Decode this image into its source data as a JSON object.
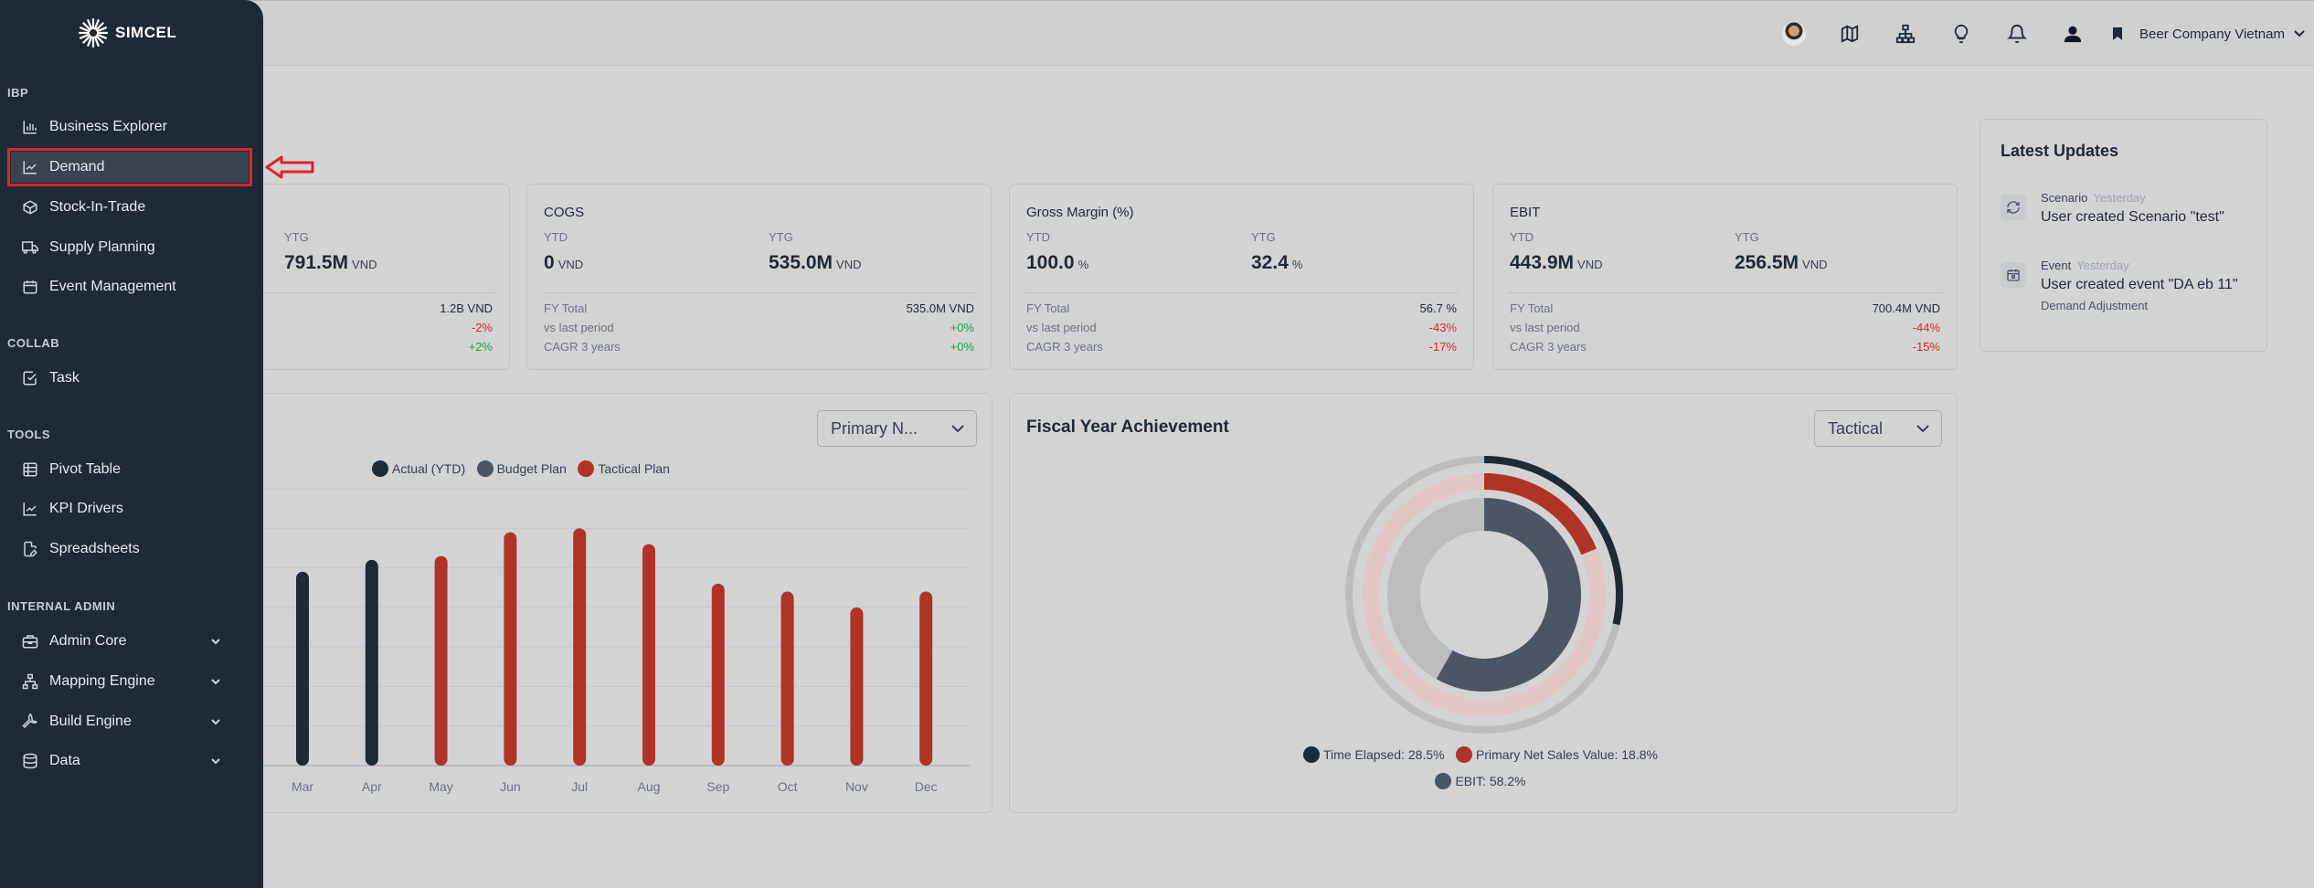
{
  "topbar": {
    "company": "Beer Company Vietnam",
    "icons": [
      "user-avatar-photo",
      "map-icon",
      "hierarchy-icon",
      "lightbulb-icon",
      "bell-icon",
      "account-icon",
      "bookmark-icon"
    ]
  },
  "sidebar": {
    "brand": "SIMCEL",
    "sections": {
      "ibp": "IBP",
      "collab": "COLLAB",
      "tools": "TOOLS",
      "internal_admin": "INTERNAL ADMIN"
    },
    "items": {
      "business_explorer": "Business Explorer",
      "demand": "Demand",
      "stock_in_trade": "Stock-In-Trade",
      "supply_planning": "Supply Planning",
      "event_management": "Event Management",
      "task": "Task",
      "pivot_table": "Pivot Table",
      "kpi_drivers": "KPI Drivers",
      "spreadsheets": "Spreadsheets",
      "admin_core": "Admin Core",
      "mapping_engine": "Mapping Engine",
      "build_engine": "Build Engine",
      "data": "Data"
    },
    "active_item": "Demand",
    "highlight_color": "#e0232b"
  },
  "kpis": {
    "first": {
      "ytg_label": "YTG",
      "ytg_value": "791.5M",
      "ytg_unit": "VND",
      "fy_total": "1.2B VND",
      "vs_last": "-2%",
      "cagr": "+2%"
    },
    "cogs": {
      "title": "COGS",
      "ytd_label": "YTD",
      "ytd_value": "0",
      "ytd_unit": "VND",
      "ytg_label": "YTG",
      "ytg_value": "535.0M",
      "ytg_unit": "VND",
      "fy_label": "FY Total",
      "fy_total": "535.0M VND",
      "vs_label": "vs last period",
      "vs_last": "+0%",
      "cagr_label": "CAGR 3 years",
      "cagr": "+0%"
    },
    "gross_margin": {
      "title": "Gross Margin (%)",
      "ytd_label": "YTD",
      "ytd_value": "100.0",
      "ytd_unit": "%",
      "ytg_label": "YTG",
      "ytg_value": "32.4",
      "ytg_unit": "%",
      "fy_label": "FY Total",
      "fy_total": "56.7 %",
      "vs_label": "vs last period",
      "vs_last": "-43%",
      "cagr_label": "CAGR 3 years",
      "cagr": "-17%"
    },
    "ebit": {
      "title": "EBIT",
      "ytd_label": "YTD",
      "ytd_value": "443.9M",
      "ytd_unit": "VND",
      "ytg_label": "YTG",
      "ytg_value": "256.5M",
      "ytg_unit": "VND",
      "fy_label": "FY Total",
      "fy_total": "700.4M VND",
      "vs_label": "vs last period",
      "vs_last": "-44%",
      "cagr_label": "CAGR 3 years",
      "cagr": "-15%"
    }
  },
  "bar_chart": {
    "select_value": "Primary N...",
    "legend": [
      "Actual (YTD)",
      "Budget Plan",
      "Tactical Plan"
    ],
    "colors": {
      "actual": "#1e2a36",
      "budget": "#4b5563",
      "tactical": "#b03328"
    }
  },
  "fya": {
    "title": "Fiscal Year Achievement",
    "select_value": "Tactical",
    "legend": {
      "time_elapsed": "Time Elapsed: 28.5%",
      "primary_nsv": "Primary Net Sales Value: 18.8%",
      "ebit": "EBIT: 58.2%"
    }
  },
  "updates": {
    "title": "Latest Updates",
    "items": [
      {
        "type": "Scenario",
        "when": "Yesterday",
        "text": "User created Scenario \"test\"",
        "sub": ""
      },
      {
        "type": "Event",
        "when": "Yesterday",
        "text": "User created event \"DA eb 11\"",
        "sub": "Demand Adjustment"
      }
    ]
  },
  "chart_data": [
    {
      "type": "bar",
      "title": "",
      "categories": [
        "Mar",
        "Apr",
        "May",
        "Jun",
        "Jul",
        "Aug",
        "Sep",
        "Oct",
        "Nov",
        "Dec"
      ],
      "series": [
        {
          "name": "Actual (YTD)",
          "values": [
            49,
            52,
            null,
            null,
            null,
            null,
            null,
            null,
            null,
            null
          ]
        },
        {
          "name": "Budget Plan",
          "values": [
            null,
            null,
            null,
            null,
            null,
            null,
            null,
            null,
            null,
            null
          ]
        },
        {
          "name": "Tactical Plan",
          "values": [
            null,
            null,
            53,
            59,
            60,
            56,
            46,
            44,
            40,
            44
          ]
        }
      ],
      "ylim": [
        0,
        70
      ],
      "grid": true,
      "legend": "top-center"
    },
    {
      "type": "pie",
      "title": "Fiscal Year Achievement",
      "categories": [
        "Time Elapsed",
        "Primary Net Sales Value",
        "EBIT"
      ],
      "values": [
        28.5,
        18.8,
        58.2
      ],
      "legend": "bottom"
    }
  ]
}
